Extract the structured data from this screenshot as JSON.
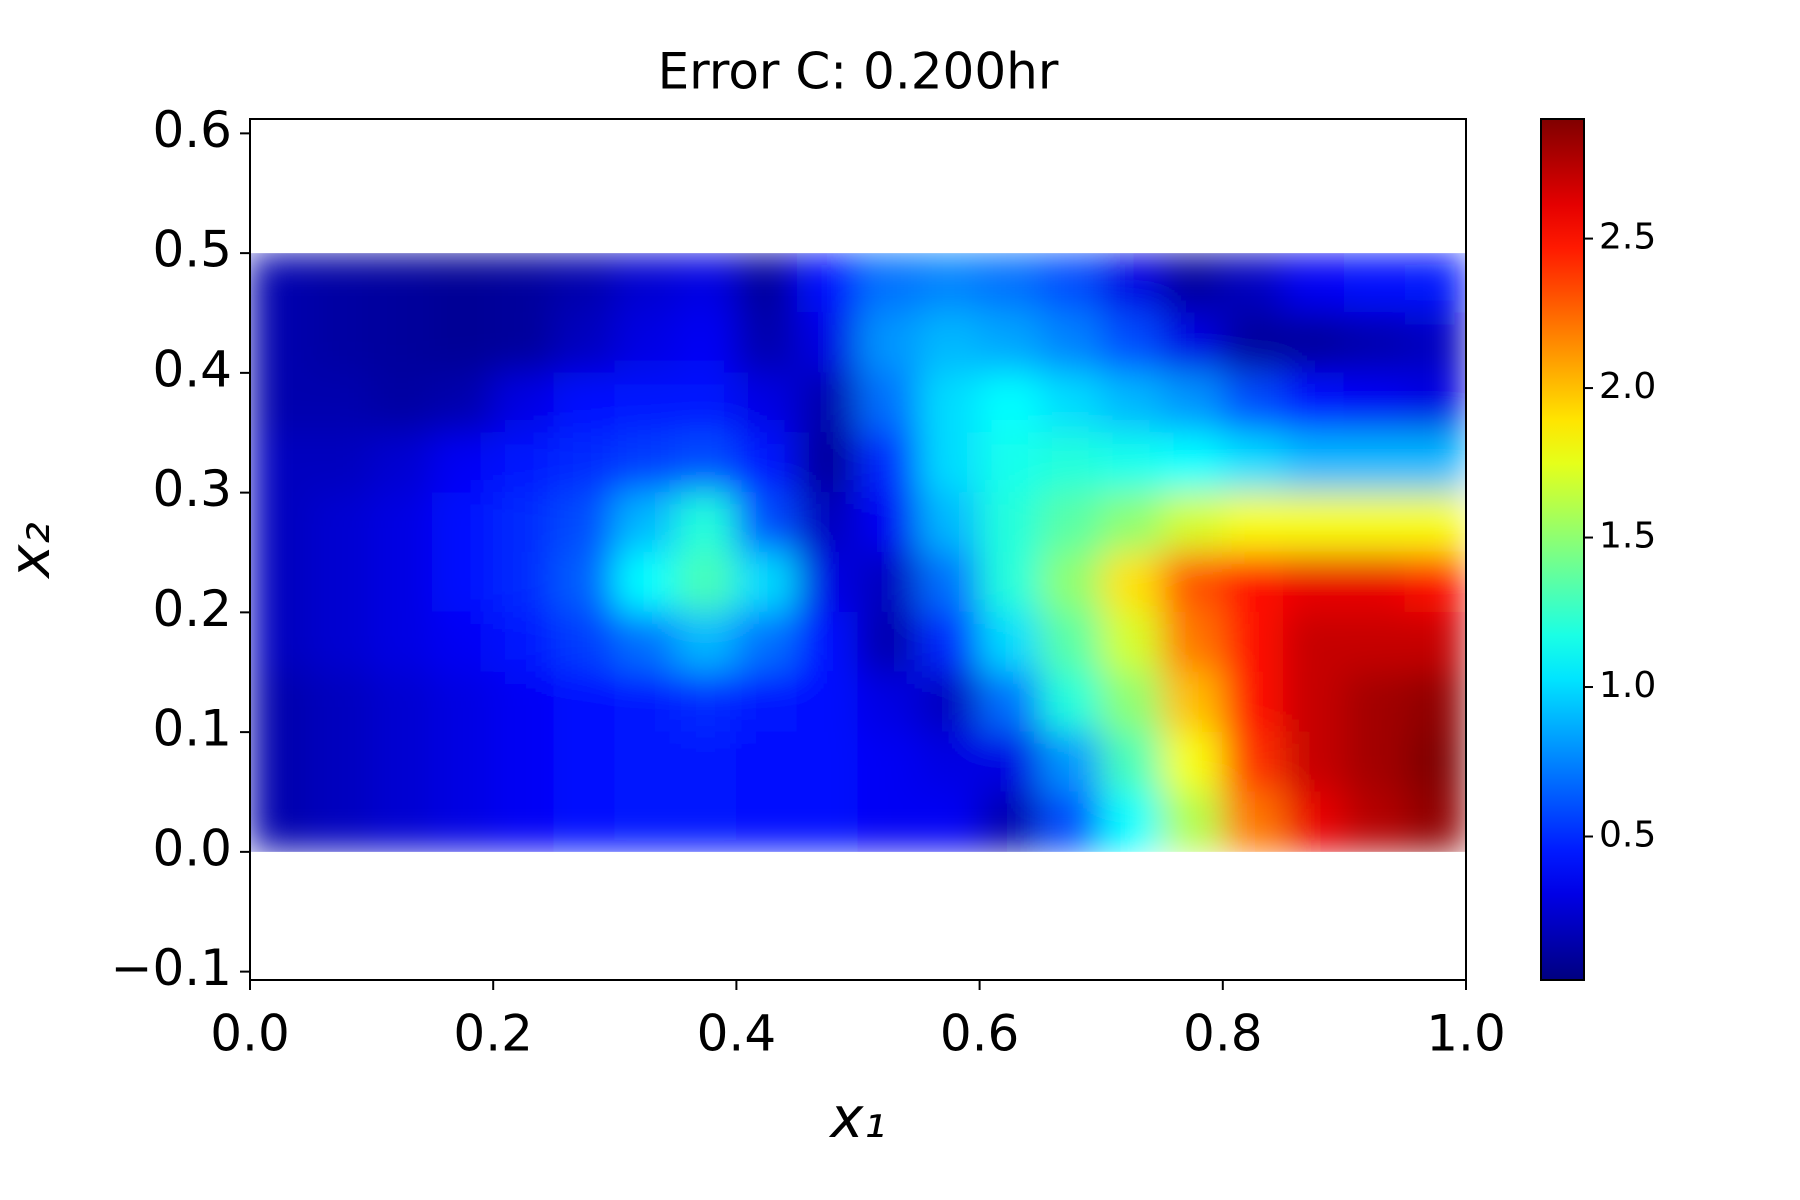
{
  "chart_data": {
    "type": "heatmap",
    "title": "Error C: 0.200hr",
    "x_label": "x₁",
    "y_label": "x₂",
    "colormap": "jet",
    "x": [
      0.025,
      0.075,
      0.125,
      0.175,
      0.225,
      0.275,
      0.325,
      0.375,
      0.425,
      0.475,
      0.525,
      0.575,
      0.625,
      0.675,
      0.725,
      0.775,
      0.825,
      0.875,
      0.925,
      0.975
    ],
    "y": [
      0.475,
      0.425,
      0.375,
      0.325,
      0.275,
      0.225,
      0.175,
      0.125,
      0.075,
      0.025
    ],
    "z": [
      [
        0.15,
        0.12,
        0.1,
        0.08,
        0.1,
        0.15,
        0.25,
        0.3,
        0.1,
        0.4,
        0.7,
        0.75,
        0.7,
        0.6,
        0.3,
        0.1,
        0.2,
        0.35,
        0.4,
        0.45
      ],
      [
        0.15,
        0.12,
        0.1,
        0.08,
        0.1,
        0.2,
        0.3,
        0.35,
        0.15,
        0.3,
        0.8,
        0.9,
        0.85,
        0.75,
        0.6,
        0.3,
        0.1,
        0.1,
        0.15,
        0.2
      ],
      [
        0.15,
        0.15,
        0.12,
        0.15,
        0.3,
        0.4,
        0.45,
        0.45,
        0.3,
        0.15,
        0.7,
        1.0,
        1.1,
        1.0,
        0.9,
        0.8,
        0.6,
        0.4,
        0.35,
        0.3
      ],
      [
        0.2,
        0.2,
        0.25,
        0.35,
        0.45,
        0.5,
        0.55,
        0.6,
        0.45,
        0.1,
        0.5,
        1.0,
        1.15,
        1.2,
        1.15,
        1.1,
        1.0,
        0.9,
        0.9,
        0.9
      ],
      [
        0.2,
        0.25,
        0.3,
        0.4,
        0.5,
        0.6,
        0.9,
        1.2,
        0.6,
        0.2,
        0.35,
        0.9,
        1.2,
        1.35,
        1.5,
        1.7,
        1.8,
        1.8,
        1.8,
        1.8
      ],
      [
        0.2,
        0.25,
        0.3,
        0.4,
        0.5,
        0.65,
        1.1,
        1.3,
        1.0,
        0.3,
        0.2,
        0.7,
        1.2,
        1.5,
        1.9,
        2.3,
        2.5,
        2.6,
        2.6,
        2.5
      ],
      [
        0.2,
        0.25,
        0.3,
        0.35,
        0.45,
        0.55,
        0.7,
        0.9,
        0.7,
        0.4,
        0.15,
        0.5,
        1.0,
        1.35,
        1.7,
        2.2,
        2.5,
        2.7,
        2.7,
        2.7
      ],
      [
        0.15,
        0.2,
        0.25,
        0.3,
        0.35,
        0.4,
        0.45,
        0.5,
        0.45,
        0.4,
        0.3,
        0.2,
        0.7,
        1.2,
        1.5,
        2.0,
        2.5,
        2.7,
        2.8,
        2.85
      ],
      [
        0.15,
        0.2,
        0.25,
        0.3,
        0.35,
        0.4,
        0.45,
        0.45,
        0.4,
        0.4,
        0.35,
        0.3,
        0.3,
        0.8,
        1.3,
        1.8,
        2.4,
        2.7,
        2.8,
        2.9
      ],
      [
        0.15,
        0.2,
        0.25,
        0.3,
        0.35,
        0.4,
        0.45,
        0.45,
        0.4,
        0.4,
        0.35,
        0.35,
        0.15,
        0.6,
        1.1,
        1.6,
        2.2,
        2.6,
        2.75,
        2.85
      ]
    ],
    "xlim": [
      0,
      1
    ],
    "xticks": [
      {
        "value": 0,
        "label": "0.0"
      },
      0.2,
      0.4,
      0.6,
      0.8,
      {
        "value": 1,
        "label": "1.0"
      }
    ],
    "ylim": [
      -0.107,
      0.612
    ],
    "yticks": [
      {
        "value": -0.1,
        "label": "−0.1"
      },
      {
        "value": 0,
        "label": "0.0"
      },
      0.1,
      0.2,
      0.3,
      0.4,
      0.5,
      0.6
    ],
    "clim": [
      0.02,
      2.9
    ],
    "cticks": [
      0.5,
      {
        "value": 1,
        "label": "1.0"
      },
      1.5,
      {
        "value": 2,
        "label": "2.0"
      },
      2.5
    ]
  }
}
